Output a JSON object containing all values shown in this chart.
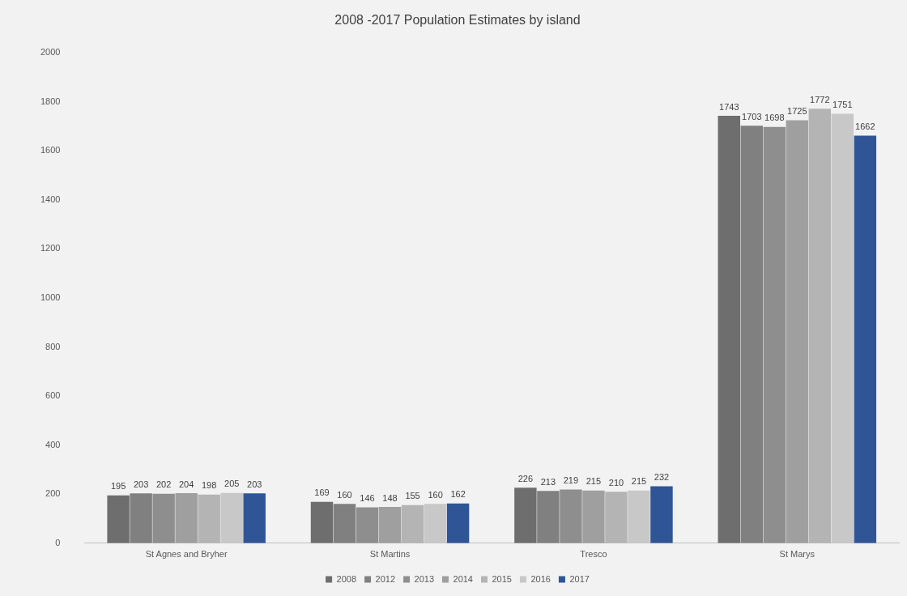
{
  "chart_data": {
    "type": "bar",
    "title": "2008 -2017 Population Estimates by island",
    "categories": [
      "St Agnes and Bryher",
      "St Martins",
      "Tresco",
      "St Marys"
    ],
    "series": [
      {
        "name": "2008",
        "color": "#6e6e6e",
        "values": [
          195,
          169,
          226,
          1743
        ]
      },
      {
        "name": "2012",
        "color": "#808080",
        "values": [
          203,
          160,
          213,
          1703
        ]
      },
      {
        "name": "2013",
        "color": "#8e8e8e",
        "values": [
          202,
          146,
          219,
          1698
        ]
      },
      {
        "name": "2014",
        "color": "#9f9f9f",
        "values": [
          204,
          148,
          215,
          1725
        ]
      },
      {
        "name": "2015",
        "color": "#b4b4b4",
        "values": [
          198,
          155,
          210,
          1772
        ]
      },
      {
        "name": "2016",
        "color": "#c8c8c8",
        "values": [
          205,
          160,
          215,
          1751
        ]
      },
      {
        "name": "2017",
        "color": "#2f5597",
        "values": [
          203,
          162,
          232,
          1662
        ]
      }
    ],
    "ylim": [
      0,
      2000
    ],
    "yticks": [
      0,
      200,
      400,
      600,
      800,
      1000,
      1200,
      1400,
      1600,
      1800,
      2000
    ],
    "grid": false,
    "legend": "bottom",
    "data_labels": true
  }
}
